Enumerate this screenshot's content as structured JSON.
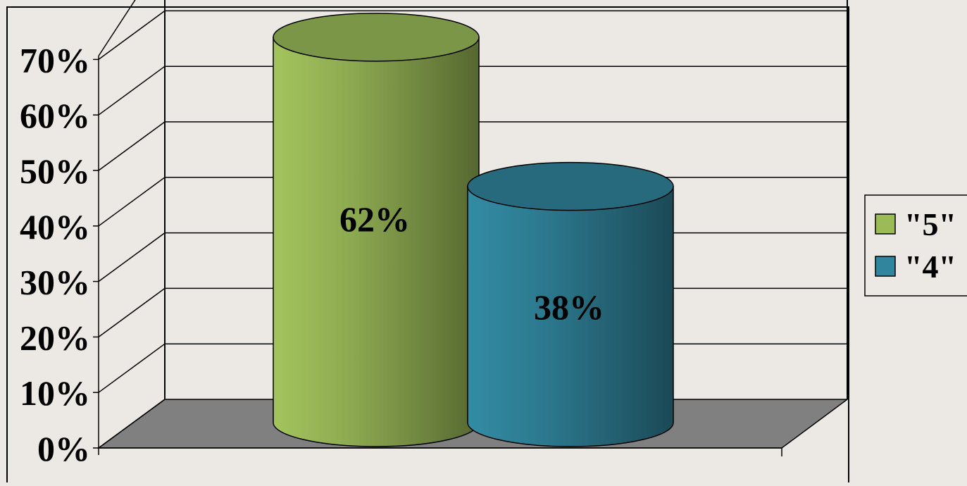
{
  "chart_data": {
    "type": "bar",
    "style": "3d-cylinder",
    "categories": [
      ""
    ],
    "series": [
      {
        "name": "\"5\"",
        "values": [
          62
        ],
        "color": "#9bbb59",
        "data_label": "62%"
      },
      {
        "name": "\"4\"",
        "values": [
          38
        ],
        "color": "#31859c",
        "data_label": "38%"
      }
    ],
    "ylim": [
      0,
      70
    ],
    "yticks": [
      0,
      10,
      20,
      30,
      40,
      50,
      60,
      70
    ],
    "ytick_labels": [
      "0%",
      "10%",
      "20%",
      "30%",
      "40%",
      "50%",
      "60%",
      "70%"
    ],
    "grid": true,
    "legend_position": "right",
    "background_color": "#ece8e4",
    "floor_color": "#808080"
  }
}
